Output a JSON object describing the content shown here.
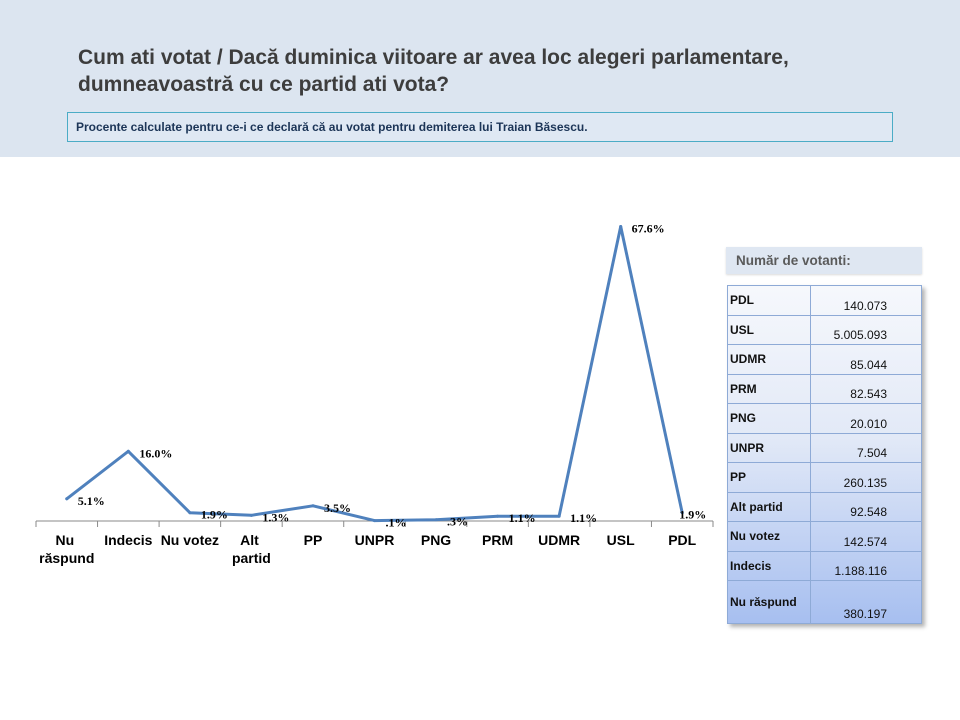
{
  "title": "Cum ati votat / Dacă duminica viitoare ar avea loc alegeri parlamentare, dumneavoastră cu ce partid ati vota?",
  "note": "Procente calculate pentru ce-i ce declară că au votat pentru demiterea lui Traian Băsescu.",
  "chart_data": {
    "type": "line",
    "categories": [
      "Nu răspund",
      "Indecis",
      "Nu votez",
      "Alt partid",
      "PP",
      "UNPR",
      "PNG",
      "PRM",
      "UDMR",
      "USL",
      "PDL"
    ],
    "values": [
      5.1,
      16.0,
      1.9,
      1.3,
      3.5,
      0.1,
      0.3,
      1.1,
      1.1,
      67.6,
      1.9
    ],
    "data_labels": [
      "5.1%",
      "16.0%",
      "1.9%",
      "1.3%",
      "3.5%",
      ".1%",
      ".3%",
      "1.1%",
      "1.1%",
      "67.6%",
      "1.9%"
    ],
    "ylim": [
      0,
      70
    ],
    "grid": false,
    "line_color": "#4f81bd"
  },
  "voters_panel": {
    "header": "Număr de votanti:",
    "rows": [
      {
        "party": "PDL",
        "count": "140.073"
      },
      {
        "party": "USL",
        "count": "5.005.093"
      },
      {
        "party": "UDMR",
        "count": "85.044"
      },
      {
        "party": "PRM",
        "count": "82.543"
      },
      {
        "party": "PNG",
        "count": "20.010"
      },
      {
        "party": "UNPR",
        "count": "7.504"
      },
      {
        "party": "PP",
        "count": "260.135"
      },
      {
        "party": "Alt partid",
        "count": "92.548"
      },
      {
        "party": "Nu votez",
        "count": "142.574"
      },
      {
        "party": "Indecis",
        "count": "1.188.116"
      },
      {
        "party": "Nu răspund",
        "count": "380.197"
      }
    ]
  },
  "colors": {
    "header_band": "#dce5f0",
    "note_border": "#4bacc6",
    "table_border": "#8eaad6",
    "table_gradient_bottom": "#a7bff0"
  }
}
